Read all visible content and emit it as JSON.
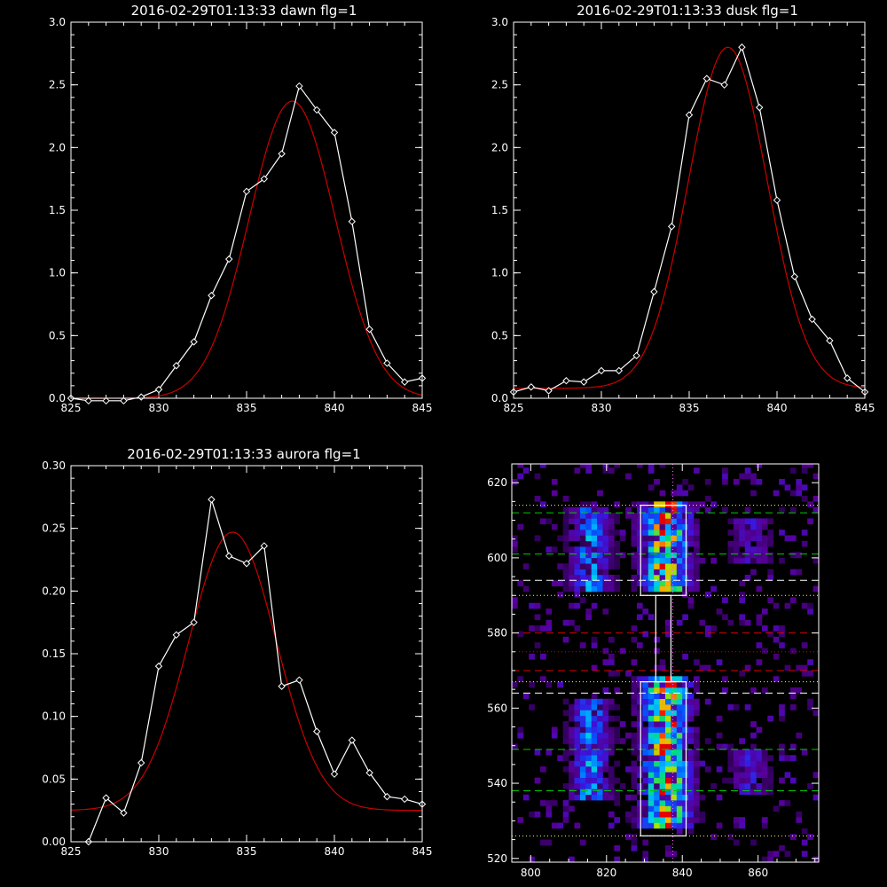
{
  "colors": {
    "background": "#000000",
    "axes": "#ffffff",
    "data_line": "#ffffff",
    "fit_line": "#cc0000"
  },
  "chart_data": [
    {
      "id": "dawn",
      "type": "line",
      "title": "2016-02-29T01:13:33 dawn flg=1",
      "xlim": [
        825,
        845
      ],
      "ylim": [
        0,
        3.0
      ],
      "xticks": [
        825,
        830,
        835,
        840,
        845
      ],
      "yticks": [
        0.0,
        0.5,
        1.0,
        1.5,
        2.0,
        2.5,
        3.0
      ],
      "ytick_labels": [
        "0.0",
        "0.5",
        "1.0",
        "1.5",
        "2.0",
        "2.5",
        "3.0"
      ],
      "series": [
        {
          "style": "white line with diamond markers",
          "x": [
            825,
            826,
            827,
            828,
            829,
            830,
            831,
            832,
            833,
            834,
            835,
            836,
            837,
            838,
            839,
            840,
            841,
            842,
            843,
            844,
            845
          ],
          "y": [
            0.0,
            -0.02,
            -0.02,
            -0.02,
            0.01,
            0.07,
            0.26,
            0.45,
            0.82,
            1.11,
            1.65,
            1.75,
            1.95,
            2.49,
            2.3,
            2.12,
            1.41,
            0.55,
            0.28,
            0.13,
            0.16
          ]
        },
        {
          "style": "red gaussian fit",
          "fit": {
            "amplitude": 2.37,
            "center": 837.6,
            "sigma": 2.45,
            "offset": 0.0
          }
        }
      ]
    },
    {
      "id": "dusk",
      "type": "line",
      "title": "2016-02-29T01:13:33 dusk flg=1",
      "xlim": [
        825,
        845
      ],
      "ylim": [
        0,
        3.0
      ],
      "xticks": [
        825,
        830,
        835,
        840,
        845
      ],
      "yticks": [
        0.0,
        0.5,
        1.0,
        1.5,
        2.0,
        2.5,
        3.0
      ],
      "ytick_labels": [
        "0.0",
        "0.5",
        "1.0",
        "1.5",
        "2.0",
        "2.5",
        "3.0"
      ],
      "series": [
        {
          "style": "white line with diamond markers",
          "x": [
            825,
            826,
            827,
            828,
            829,
            830,
            831,
            832,
            833,
            834,
            835,
            836,
            837,
            838,
            839,
            840,
            841,
            842,
            843,
            844,
            845
          ],
          "y": [
            0.05,
            0.09,
            0.06,
            0.14,
            0.13,
            0.22,
            0.22,
            0.34,
            0.85,
            1.37,
            2.26,
            2.55,
            2.5,
            2.8,
            2.32,
            1.58,
            0.97,
            0.63,
            0.46,
            0.16,
            0.05
          ]
        },
        {
          "style": "red gaussian fit",
          "fit": {
            "amplitude": 2.72,
            "center": 837.2,
            "sigma": 2.25,
            "offset": 0.08
          }
        }
      ]
    },
    {
      "id": "aurora",
      "type": "line",
      "title": "2016-02-29T01:13:33 aurora flg=1",
      "xlim": [
        825,
        845
      ],
      "ylim": [
        0,
        0.3
      ],
      "xticks": [
        825,
        830,
        835,
        840,
        845
      ],
      "yticks": [
        0.0,
        0.05,
        0.1,
        0.15,
        0.2,
        0.25,
        0.3
      ],
      "ytick_labels": [
        "0.00",
        "0.05",
        "0.10",
        "0.15",
        "0.20",
        "0.25",
        "0.30"
      ],
      "series": [
        {
          "style": "white line with diamond markers",
          "x": [
            826,
            827,
            828,
            829,
            830,
            831,
            832,
            833,
            834,
            835,
            836,
            837,
            838,
            839,
            840,
            841,
            842,
            843,
            844,
            845
          ],
          "y": [
            0.0,
            0.035,
            0.023,
            0.063,
            0.14,
            0.165,
            0.175,
            0.273,
            0.228,
            0.222,
            0.236,
            0.124,
            0.129,
            0.088,
            0.054,
            0.081,
            0.055,
            0.036,
            0.034,
            0.03
          ]
        },
        {
          "style": "red gaussian fit",
          "fit": {
            "amplitude": 0.222,
            "center": 834.2,
            "sigma": 2.5,
            "offset": 0.025
          }
        }
      ]
    },
    {
      "id": "spectrogram",
      "type": "heatmap",
      "title": "",
      "xlim": [
        795,
        876
      ],
      "ylim": [
        519,
        625
      ],
      "xticks": [
        800,
        820,
        840,
        860
      ],
      "yticks": [
        520,
        540,
        560,
        580,
        600,
        620
      ],
      "bands": [
        {
          "x_center": 815,
          "width": 7,
          "y_ranges": [
            [
              593,
              610
            ],
            [
              537,
              560
            ]
          ],
          "intensity": 0.55
        },
        {
          "x_center": 835,
          "width": 9,
          "y_ranges": [
            [
              592,
              612
            ],
            [
              530,
              566
            ]
          ],
          "intensity": 0.95
        },
        {
          "x_center": 857,
          "width": 7,
          "y_ranges": [
            [
              600,
              608
            ],
            [
              538,
              546
            ]
          ],
          "intensity": 0.3
        }
      ],
      "boxes": [
        {
          "x": [
            829,
            841
          ],
          "y": [
            590,
            614
          ]
        },
        {
          "x": [
            829,
            841
          ],
          "y": [
            526,
            567
          ]
        }
      ],
      "connector": {
        "x": [
          833,
          837
        ],
        "y": [
          567,
          590
        ]
      },
      "h_lines": [
        {
          "y": 612,
          "color": "#00cc00",
          "style": "dashed"
        },
        {
          "y": 601,
          "color": "#00cc00",
          "style": "dashed"
        },
        {
          "y": 549,
          "color": "#00cc00",
          "style": "dashed"
        },
        {
          "y": 538,
          "color": "#00cc00",
          "style": "dashed"
        },
        {
          "y": 594,
          "color": "#ffffff",
          "style": "dashed"
        },
        {
          "y": 564,
          "color": "#ffffff",
          "style": "dashed"
        },
        {
          "y": 580,
          "color": "#dd0000",
          "style": "dashed"
        },
        {
          "y": 570,
          "color": "#dd0000",
          "style": "dashed"
        },
        {
          "y": 575,
          "color": "#dd0000",
          "style": "dotted"
        },
        {
          "y": 614,
          "color": "#ffff66",
          "style": "dotted"
        },
        {
          "y": 590,
          "color": "#ffff66",
          "style": "dotted"
        },
        {
          "y": 567,
          "color": "#ffff66",
          "style": "dotted"
        },
        {
          "y": 526,
          "color": "#ffff66",
          "style": "dotted"
        }
      ],
      "v_line": {
        "x": 837.5,
        "color": "#ff66ff",
        "style": "dotted"
      }
    }
  ]
}
